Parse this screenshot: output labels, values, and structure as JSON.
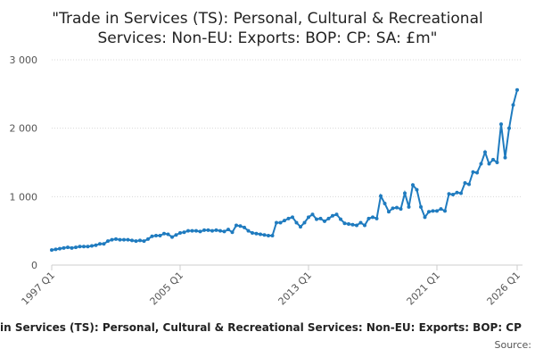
{
  "chart_data": {
    "type": "line",
    "title": "\"Trade in Services (TS): Personal, Cultural & Recreational Services: Non-EU: Exports: BOP: CP: SA: £m\"",
    "x_label": "in Services (TS): Personal, Cultural & Recreational Services: Non-EU: Exports: BOP: CP",
    "source": "Source:",
    "categories": [
      "1997 Q1",
      null,
      null,
      null,
      null,
      null,
      null,
      null,
      null,
      null,
      null,
      null,
      null,
      null,
      null,
      null,
      null,
      null,
      null,
      null,
      null,
      null,
      null,
      null,
      null,
      null,
      null,
      null,
      null,
      null,
      null,
      null,
      "2005 Q1",
      null,
      null,
      null,
      null,
      null,
      null,
      null,
      null,
      null,
      null,
      null,
      null,
      null,
      null,
      null,
      null,
      null,
      null,
      null,
      null,
      null,
      null,
      null,
      null,
      null,
      null,
      null,
      null,
      null,
      null,
      null,
      "2013 Q1",
      null,
      null,
      null,
      null,
      null,
      null,
      null,
      null,
      null,
      null,
      null,
      null,
      null,
      null,
      null,
      null,
      null,
      null,
      null,
      null,
      null,
      null,
      null,
      null,
      null,
      null,
      null,
      null,
      null,
      null,
      null,
      "2021 Q1",
      null,
      null,
      null,
      null,
      null,
      null,
      null,
      null,
      null,
      null,
      null,
      null,
      null,
      null,
      null,
      null,
      null,
      null,
      null,
      "2026 Q1"
    ],
    "series": [
      {
        "color": "#1f7bbf",
        "values": [
          220,
          230,
          240,
          250,
          260,
          250,
          260,
          270,
          270,
          270,
          280,
          290,
          310,
          310,
          350,
          370,
          380,
          370,
          370,
          370,
          360,
          350,
          360,
          350,
          380,
          420,
          430,
          430,
          460,
          450,
          410,
          440,
          470,
          480,
          500,
          500,
          500,
          490,
          510,
          510,
          500,
          510,
          500,
          490,
          520,
          480,
          580,
          570,
          550,
          500,
          470,
          460,
          450,
          440,
          430,
          430,
          620,
          620,
          650,
          680,
          700,
          620,
          560,
          620,
          700,
          740,
          670,
          680,
          640,
          680,
          720,
          740,
          670,
          610,
          600,
          590,
          580,
          620,
          580,
          680,
          700,
          680,
          1010,
          900,
          780,
          830,
          840,
          820,
          1050,
          850,
          1170,
          1100,
          850,
          700,
          780,
          790,
          790,
          820,
          790,
          1040,
          1030,
          1060,
          1050,
          1200,
          1180,
          1360,
          1350,
          1480,
          1650,
          1480,
          1540,
          1500,
          2060,
          1570,
          2000,
          2340,
          2560
        ]
      }
    ],
    "ylim": [
      0,
      3000
    ],
    "yticks": [
      0,
      {
        "value": 1000,
        "label": "1 000"
      },
      {
        "value": 2000,
        "label": "2 000"
      },
      {
        "value": 3000,
        "label": "3 000"
      }
    ],
    "grid": true
  }
}
